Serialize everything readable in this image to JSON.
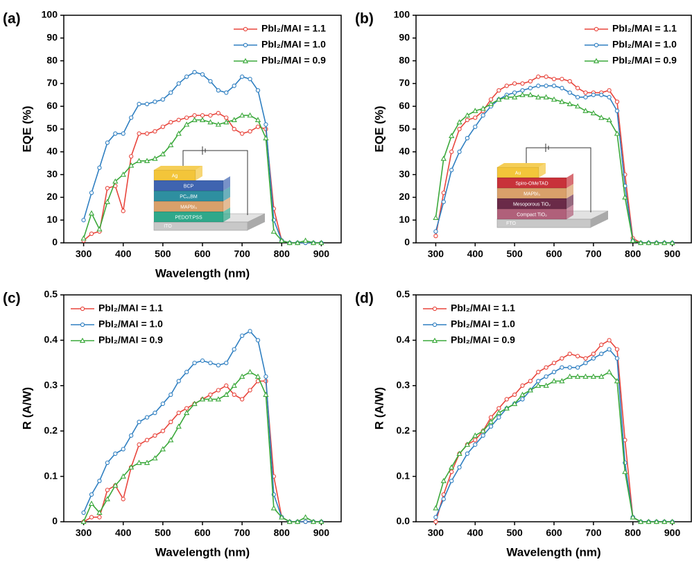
{
  "chart_data": [
    {
      "type": "line",
      "label": "(a)",
      "ylabel": "EQE (%)",
      "xlabel": "Wavelength (nm)",
      "xlim": [
        250,
        950
      ],
      "xticks": [
        300,
        400,
        500,
        600,
        700,
        800,
        900
      ],
      "ylim": [
        0,
        100
      ],
      "yticks": [
        0,
        10,
        20,
        30,
        40,
        50,
        60,
        70,
        80,
        90,
        100
      ],
      "legend": "upper right",
      "x": [
        300,
        320,
        340,
        360,
        380,
        400,
        420,
        440,
        460,
        480,
        500,
        520,
        540,
        560,
        580,
        600,
        620,
        640,
        660,
        680,
        700,
        720,
        740,
        760,
        780,
        800,
        820,
        840,
        860,
        880,
        900
      ],
      "series": [
        {
          "name": "PbI₂/MAI = 1.1",
          "color": "#e8453c",
          "marker": "circle",
          "values": [
            1,
            4,
            5,
            24,
            25,
            14,
            38,
            48,
            48,
            49,
            51,
            53,
            54,
            55,
            56,
            56,
            56,
            57,
            55,
            50,
            48,
            49,
            51,
            50,
            15,
            1,
            0,
            0,
            0,
            0,
            0
          ]
        },
        {
          "name": "PbI₂/MAI = 1.0",
          "color": "#2f7fc1",
          "marker": "circle",
          "values": [
            10,
            22,
            33,
            44,
            48,
            48,
            55,
            61,
            61,
            62,
            63,
            66,
            70,
            73,
            75,
            74,
            71,
            67,
            66,
            69,
            73,
            72,
            67,
            52,
            10,
            1,
            0,
            0,
            0,
            0,
            0
          ]
        },
        {
          "name": "PbI₂/MAI = 0.9",
          "color": "#3aa83a",
          "marker": "triangle",
          "values": [
            2,
            13,
            6,
            18,
            27,
            30,
            34,
            36,
            36,
            37,
            39,
            43,
            48,
            52,
            54,
            54,
            53,
            52,
            53,
            54,
            56,
            56,
            54,
            46,
            5,
            1,
            0,
            0,
            1,
            0,
            0
          ]
        }
      ],
      "inset_layers": [
        {
          "label": "ITO",
          "color": "#c8c8c8"
        },
        {
          "label": "PEDOT:PSS",
          "color": "#2fa88a"
        },
        {
          "label": "MAPbI₃",
          "color": "#d9a06a"
        },
        {
          "label": "PC₆₁BM",
          "color": "#2e8fa0"
        },
        {
          "label": "BCP",
          "color": "#3f64b0"
        },
        {
          "label": "Ag",
          "color": "#f3c53a"
        }
      ]
    },
    {
      "type": "line",
      "label": "(b)",
      "ylabel": "EQE (%)",
      "xlim": [
        250,
        950
      ],
      "xticks": [
        300,
        400,
        500,
        600,
        700,
        800,
        900
      ],
      "ylim": [
        0,
        100
      ],
      "yticks": [
        0,
        10,
        20,
        30,
        40,
        50,
        60,
        70,
        80,
        90,
        100
      ],
      "legend": "upper right",
      "x": [
        300,
        320,
        340,
        360,
        380,
        400,
        420,
        440,
        460,
        480,
        500,
        520,
        540,
        560,
        580,
        600,
        620,
        640,
        660,
        680,
        700,
        720,
        740,
        760,
        780,
        800,
        820,
        840,
        860,
        880,
        900
      ],
      "series": [
        {
          "name": "PbI₂/MAI = 1.1",
          "color": "#e8453c",
          "marker": "circle",
          "values": [
            3,
            22,
            40,
            50,
            54,
            55,
            58,
            63,
            67,
            69,
            70,
            70,
            71,
            73,
            73,
            72,
            72,
            71,
            68,
            66,
            66,
            66,
            67,
            62,
            30,
            2,
            0,
            0,
            0,
            0,
            0
          ]
        },
        {
          "name": "PbI₂/MAI = 1.0",
          "color": "#2f7fc1",
          "marker": "circle",
          "values": [
            5,
            18,
            32,
            40,
            46,
            51,
            56,
            60,
            63,
            65,
            66,
            67,
            68,
            69,
            69,
            69,
            68,
            66,
            64,
            64,
            65,
            65,
            64,
            58,
            25,
            1,
            0,
            0,
            0,
            0,
            0
          ]
        },
        {
          "name": "PbI₂/MAI = 0.9",
          "color": "#3aa83a",
          "marker": "triangle",
          "values": [
            11,
            37,
            47,
            53,
            56,
            58,
            59,
            61,
            63,
            64,
            64,
            65,
            65,
            64,
            64,
            63,
            62,
            61,
            60,
            58,
            57,
            55,
            54,
            48,
            20,
            1,
            0,
            0,
            0,
            0,
            0
          ]
        }
      ],
      "inset_layers": [
        {
          "label": "FTO",
          "color": "#c8c8c8"
        },
        {
          "label": "Compact TiO₂",
          "color": "#b0607a"
        },
        {
          "label": "Mesoporous TiO₂",
          "color": "#6a2a48"
        },
        {
          "label": "MAPbI₃",
          "color": "#d9a06a"
        },
        {
          "label": "Spiro-OMeTAD",
          "color": "#c8323a"
        },
        {
          "label": "Au",
          "color": "#f3c53a"
        }
      ]
    },
    {
      "type": "line",
      "label": "(c)",
      "ylabel": "R (A/W)",
      "xlabel": "Wavelength (nm)",
      "xlim": [
        250,
        950
      ],
      "xticks": [
        300,
        400,
        500,
        600,
        700,
        800,
        900
      ],
      "ylim": [
        0,
        0.5
      ],
      "yticks": [
        0,
        0.1,
        0.2,
        0.3,
        0.4,
        0.5
      ],
      "legend": "upper left",
      "x": [
        300,
        320,
        340,
        360,
        380,
        400,
        420,
        440,
        460,
        480,
        500,
        520,
        540,
        560,
        580,
        600,
        620,
        640,
        660,
        680,
        700,
        720,
        740,
        760,
        780,
        800,
        820,
        840,
        860,
        880,
        900
      ],
      "series": [
        {
          "name": "PbI₂/MAI = 1.1",
          "color": "#e8453c",
          "marker": "circle",
          "values": [
            0,
            0.01,
            0.01,
            0.07,
            0.08,
            0.05,
            0.12,
            0.17,
            0.18,
            0.19,
            0.2,
            0.22,
            0.24,
            0.25,
            0.26,
            0.27,
            0.28,
            0.29,
            0.3,
            0.28,
            0.27,
            0.29,
            0.31,
            0.31,
            0.1,
            0.01,
            0,
            0,
            0,
            0,
            0
          ]
        },
        {
          "name": "PbI₂/MAI = 1.0",
          "color": "#2f7fc1",
          "marker": "circle",
          "values": [
            0.02,
            0.06,
            0.09,
            0.13,
            0.15,
            0.16,
            0.19,
            0.22,
            0.23,
            0.24,
            0.26,
            0.28,
            0.31,
            0.33,
            0.35,
            0.355,
            0.35,
            0.345,
            0.35,
            0.38,
            0.41,
            0.42,
            0.4,
            0.32,
            0.06,
            0.01,
            0,
            0,
            0,
            0,
            0
          ]
        },
        {
          "name": "PbI₂/MAI = 0.9",
          "color": "#3aa83a",
          "marker": "triangle",
          "values": [
            0,
            0.04,
            0.02,
            0.05,
            0.08,
            0.1,
            0.12,
            0.13,
            0.13,
            0.14,
            0.16,
            0.18,
            0.21,
            0.24,
            0.26,
            0.27,
            0.27,
            0.27,
            0.28,
            0.3,
            0.32,
            0.33,
            0.32,
            0.28,
            0.03,
            0.01,
            0,
            0,
            0.01,
            0,
            0
          ]
        }
      ]
    },
    {
      "type": "line",
      "label": "(d)",
      "ylabel": "R (A/W)",
      "xlabel": "Wavelength (nm)",
      "xlim": [
        250,
        950
      ],
      "xticks": [
        300,
        400,
        500,
        600,
        700,
        800,
        900
      ],
      "ylim": [
        0,
        0.5
      ],
      "yticks": [
        {
          "value": 0,
          "label": "0.0"
        },
        0.1,
        0.2,
        0.3,
        0.4,
        0.5
      ],
      "legend": "upper left",
      "x": [
        300,
        320,
        340,
        360,
        380,
        400,
        420,
        440,
        460,
        480,
        500,
        520,
        540,
        560,
        580,
        600,
        620,
        640,
        660,
        680,
        700,
        720,
        740,
        760,
        780,
        800,
        820,
        840,
        860,
        880,
        900
      ],
      "series": [
        {
          "name": "PbI₂/MAI = 1.1",
          "color": "#e8453c",
          "marker": "circle",
          "values": [
            0,
            0.06,
            0.11,
            0.15,
            0.17,
            0.18,
            0.2,
            0.23,
            0.25,
            0.27,
            0.28,
            0.3,
            0.31,
            0.33,
            0.34,
            0.35,
            0.36,
            0.37,
            0.365,
            0.36,
            0.37,
            0.39,
            0.4,
            0.38,
            0.18,
            0.01,
            0,
            0,
            0,
            0,
            0
          ]
        },
        {
          "name": "PbI₂/MAI = 1.0",
          "color": "#2f7fc1",
          "marker": "circle",
          "values": [
            0.01,
            0.05,
            0.09,
            0.12,
            0.15,
            0.17,
            0.19,
            0.21,
            0.23,
            0.25,
            0.26,
            0.27,
            0.29,
            0.31,
            0.32,
            0.33,
            0.34,
            0.34,
            0.34,
            0.35,
            0.36,
            0.37,
            0.38,
            0.36,
            0.13,
            0.01,
            0,
            0,
            0,
            0,
            0
          ]
        },
        {
          "name": "PbI₂/MAI = 0.9",
          "color": "#3aa83a",
          "marker": "triangle",
          "values": [
            0.03,
            0.09,
            0.12,
            0.15,
            0.17,
            0.19,
            0.2,
            0.22,
            0.24,
            0.25,
            0.26,
            0.28,
            0.29,
            0.3,
            0.3,
            0.31,
            0.31,
            0.32,
            0.32,
            0.32,
            0.32,
            0.32,
            0.33,
            0.31,
            0.11,
            0.01,
            0,
            0,
            0,
            0,
            0
          ]
        }
      ]
    }
  ]
}
